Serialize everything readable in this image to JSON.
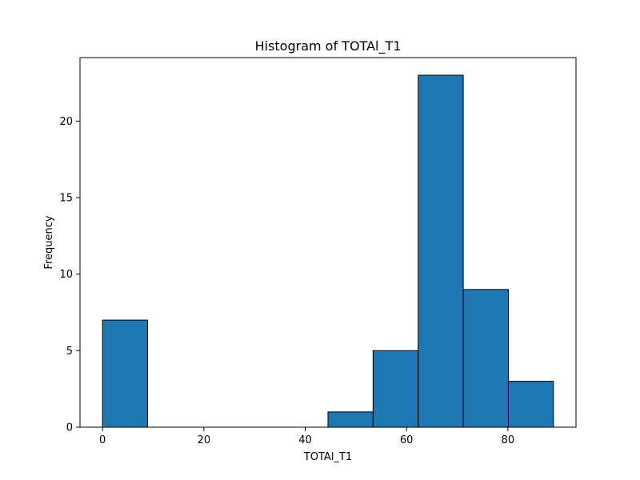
{
  "chart_data": {
    "type": "bar",
    "title": "Histogram of TOTAl_T1",
    "xlabel": "TOTAl_T1",
    "ylabel": "Frequency",
    "bins": [
      {
        "start": 0.0,
        "end": 8.9,
        "count": 7
      },
      {
        "start": 8.9,
        "end": 17.8,
        "count": 0
      },
      {
        "start": 17.8,
        "end": 26.7,
        "count": 0
      },
      {
        "start": 26.7,
        "end": 35.6,
        "count": 0
      },
      {
        "start": 35.6,
        "end": 44.5,
        "count": 0
      },
      {
        "start": 44.5,
        "end": 53.4,
        "count": 1
      },
      {
        "start": 53.4,
        "end": 62.3,
        "count": 5
      },
      {
        "start": 62.3,
        "end": 71.2,
        "count": 23
      },
      {
        "start": 71.2,
        "end": 80.1,
        "count": 9
      },
      {
        "start": 80.1,
        "end": 89.0,
        "count": 3
      }
    ],
    "xlim": [
      -4.45,
      93.45
    ],
    "ylim": [
      0,
      24.15
    ],
    "xticks": [
      0,
      20,
      40,
      60,
      80
    ],
    "yticks": [
      0,
      5,
      10,
      15,
      20
    ],
    "grid": false,
    "colors": {
      "bar_fill": "#1f77b4",
      "bar_edge": "#000000",
      "axis": "#000000"
    }
  }
}
